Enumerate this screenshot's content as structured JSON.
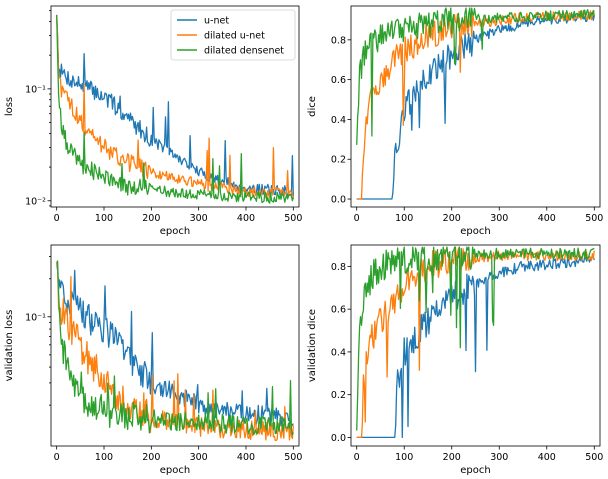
{
  "chart_data": [
    {
      "id": "train-loss",
      "type": "line",
      "xlabel": "epoch",
      "ylabel": "loss",
      "yscale": "log",
      "xlim": [
        -12,
        512
      ],
      "ylim": [
        0.0088,
        0.55
      ],
      "xticks": [
        0,
        100,
        200,
        300,
        400,
        500
      ],
      "yticks": [
        0.01,
        0.1
      ],
      "ytick_labels": [
        "10⁻²",
        "10⁻¹"
      ],
      "legend": {
        "position": "upper-right",
        "entries": [
          "u-net",
          "dilated u-net",
          "dilated densenet"
        ]
      },
      "series": [
        {
          "name": "u-net",
          "color": "#1f77b4",
          "x": [
            0,
            3,
            10,
            30,
            60,
            100,
            130,
            160,
            200,
            250,
            300,
            350,
            400,
            450,
            500
          ],
          "y": [
            0.5,
            0.17,
            0.14,
            0.12,
            0.105,
            0.085,
            0.066,
            0.05,
            0.035,
            0.025,
            0.018,
            0.015,
            0.013,
            0.0125,
            0.012
          ]
        },
        {
          "name": "dilated u-net",
          "color": "#ff7f0e",
          "x": [
            0,
            3,
            10,
            30,
            60,
            100,
            150,
            200,
            250,
            300,
            350,
            400,
            450,
            500
          ],
          "y": [
            0.5,
            0.13,
            0.1,
            0.07,
            0.045,
            0.03,
            0.022,
            0.018,
            0.016,
            0.014,
            0.013,
            0.012,
            0.0118,
            0.0115
          ]
        },
        {
          "name": "dilated densenet",
          "color": "#2ca02c",
          "x": [
            0,
            3,
            10,
            20,
            40,
            60,
            100,
            150,
            200,
            250,
            300,
            400,
            500
          ],
          "y": [
            0.5,
            0.1,
            0.05,
            0.032,
            0.024,
            0.02,
            0.016,
            0.0135,
            0.0125,
            0.0118,
            0.0113,
            0.0108,
            0.0105
          ]
        }
      ]
    },
    {
      "id": "train-dice",
      "type": "line",
      "xlabel": "epoch",
      "ylabel": "dice",
      "yscale": "linear",
      "xlim": [
        -12,
        512
      ],
      "ylim": [
        -0.04,
        0.97
      ],
      "xticks": [
        0,
        100,
        200,
        300,
        400,
        500
      ],
      "yticks": [
        0.0,
        0.2,
        0.4,
        0.6,
        0.8
      ],
      "ytick_labels": [
        "0.0",
        "0.2",
        "0.4",
        "0.6",
        "0.8"
      ],
      "series": [
        {
          "name": "u-net",
          "color": "#1f77b4",
          "x": [
            0,
            75,
            80,
            100,
            150,
            200,
            250,
            300,
            350,
            400,
            450,
            500
          ],
          "y": [
            0.0,
            0.0,
            0.2,
            0.45,
            0.62,
            0.72,
            0.8,
            0.85,
            0.88,
            0.9,
            0.91,
            0.92
          ]
        },
        {
          "name": "dilated u-net",
          "color": "#ff7f0e",
          "x": [
            0,
            10,
            15,
            30,
            50,
            80,
            100,
            150,
            200,
            250,
            300,
            350,
            400,
            450,
            500
          ],
          "y": [
            0.0,
            0.0,
            0.3,
            0.5,
            0.6,
            0.7,
            0.75,
            0.82,
            0.86,
            0.88,
            0.9,
            0.91,
            0.915,
            0.92,
            0.925
          ]
        },
        {
          "name": "dilated densenet",
          "color": "#2ca02c",
          "x": [
            0,
            5,
            15,
            30,
            50,
            100,
            150,
            200,
            300,
            400,
            500
          ],
          "y": [
            0.3,
            0.6,
            0.72,
            0.78,
            0.82,
            0.86,
            0.88,
            0.9,
            0.91,
            0.92,
            0.93
          ]
        }
      ]
    },
    {
      "id": "validation-loss",
      "type": "line",
      "xlabel": "epoch",
      "ylabel": "validation loss",
      "yscale": "log",
      "xlim": [
        -12,
        512
      ],
      "ylim": [
        0.0095,
        0.37
      ],
      "xticks": [
        0,
        100,
        200,
        300,
        400,
        500
      ],
      "yticks": [
        0.1
      ],
      "ytick_labels": [
        "10⁻¹"
      ],
      "series": [
        {
          "name": "u-net",
          "color": "#1f77b4",
          "x": [
            0,
            5,
            30,
            60,
            100,
            130,
            160,
            200,
            250,
            300,
            350,
            400,
            450,
            500
          ],
          "y": [
            0.3,
            0.15,
            0.12,
            0.1,
            0.08,
            0.06,
            0.045,
            0.03,
            0.025,
            0.02,
            0.018,
            0.017,
            0.0165,
            0.016
          ]
        },
        {
          "name": "dilated u-net",
          "color": "#ff7f0e",
          "x": [
            0,
            5,
            30,
            60,
            100,
            150,
            200,
            250,
            300,
            350,
            400,
            450,
            500
          ],
          "y": [
            0.3,
            0.12,
            0.08,
            0.05,
            0.03,
            0.02,
            0.016,
            0.0145,
            0.0135,
            0.013,
            0.0128,
            0.0125,
            0.0125
          ]
        },
        {
          "name": "dilated densenet",
          "color": "#2ca02c",
          "x": [
            0,
            5,
            15,
            30,
            50,
            80,
            120,
            200,
            300,
            400,
            500
          ],
          "y": [
            0.3,
            0.1,
            0.05,
            0.03,
            0.022,
            0.019,
            0.017,
            0.0155,
            0.0145,
            0.014,
            0.0138
          ]
        }
      ]
    },
    {
      "id": "validation-dice",
      "type": "line",
      "xlabel": "epoch",
      "ylabel": "validation dice",
      "yscale": "linear",
      "xlim": [
        -12,
        512
      ],
      "ylim": [
        -0.04,
        0.9
      ],
      "xticks": [
        0,
        100,
        200,
        300,
        400,
        500
      ],
      "yticks": [
        0.0,
        0.2,
        0.4,
        0.6,
        0.8
      ],
      "ytick_labels": [
        "0.0",
        "0.2",
        "0.4",
        "0.6",
        "0.8"
      ],
      "series": [
        {
          "name": "u-net",
          "color": "#1f77b4",
          "x": [
            0,
            80,
            85,
            100,
            150,
            200,
            250,
            300,
            350,
            400,
            450,
            500
          ],
          "y": [
            0.0,
            0.0,
            0.25,
            0.4,
            0.55,
            0.65,
            0.72,
            0.77,
            0.8,
            0.81,
            0.82,
            0.83
          ]
        },
        {
          "name": "dilated u-net",
          "color": "#ff7f0e",
          "x": [
            0,
            10,
            15,
            30,
            50,
            80,
            100,
            150,
            200,
            250,
            300,
            350,
            400,
            450,
            500
          ],
          "y": [
            0.0,
            0.0,
            0.3,
            0.45,
            0.55,
            0.65,
            0.72,
            0.8,
            0.83,
            0.84,
            0.85,
            0.85,
            0.85,
            0.85,
            0.85
          ]
        },
        {
          "name": "dilated densenet",
          "color": "#2ca02c",
          "x": [
            0,
            5,
            15,
            30,
            50,
            100,
            150,
            200,
            300,
            400,
            500
          ],
          "y": [
            0.05,
            0.5,
            0.65,
            0.75,
            0.8,
            0.83,
            0.84,
            0.85,
            0.86,
            0.86,
            0.86
          ]
        }
      ]
    }
  ]
}
